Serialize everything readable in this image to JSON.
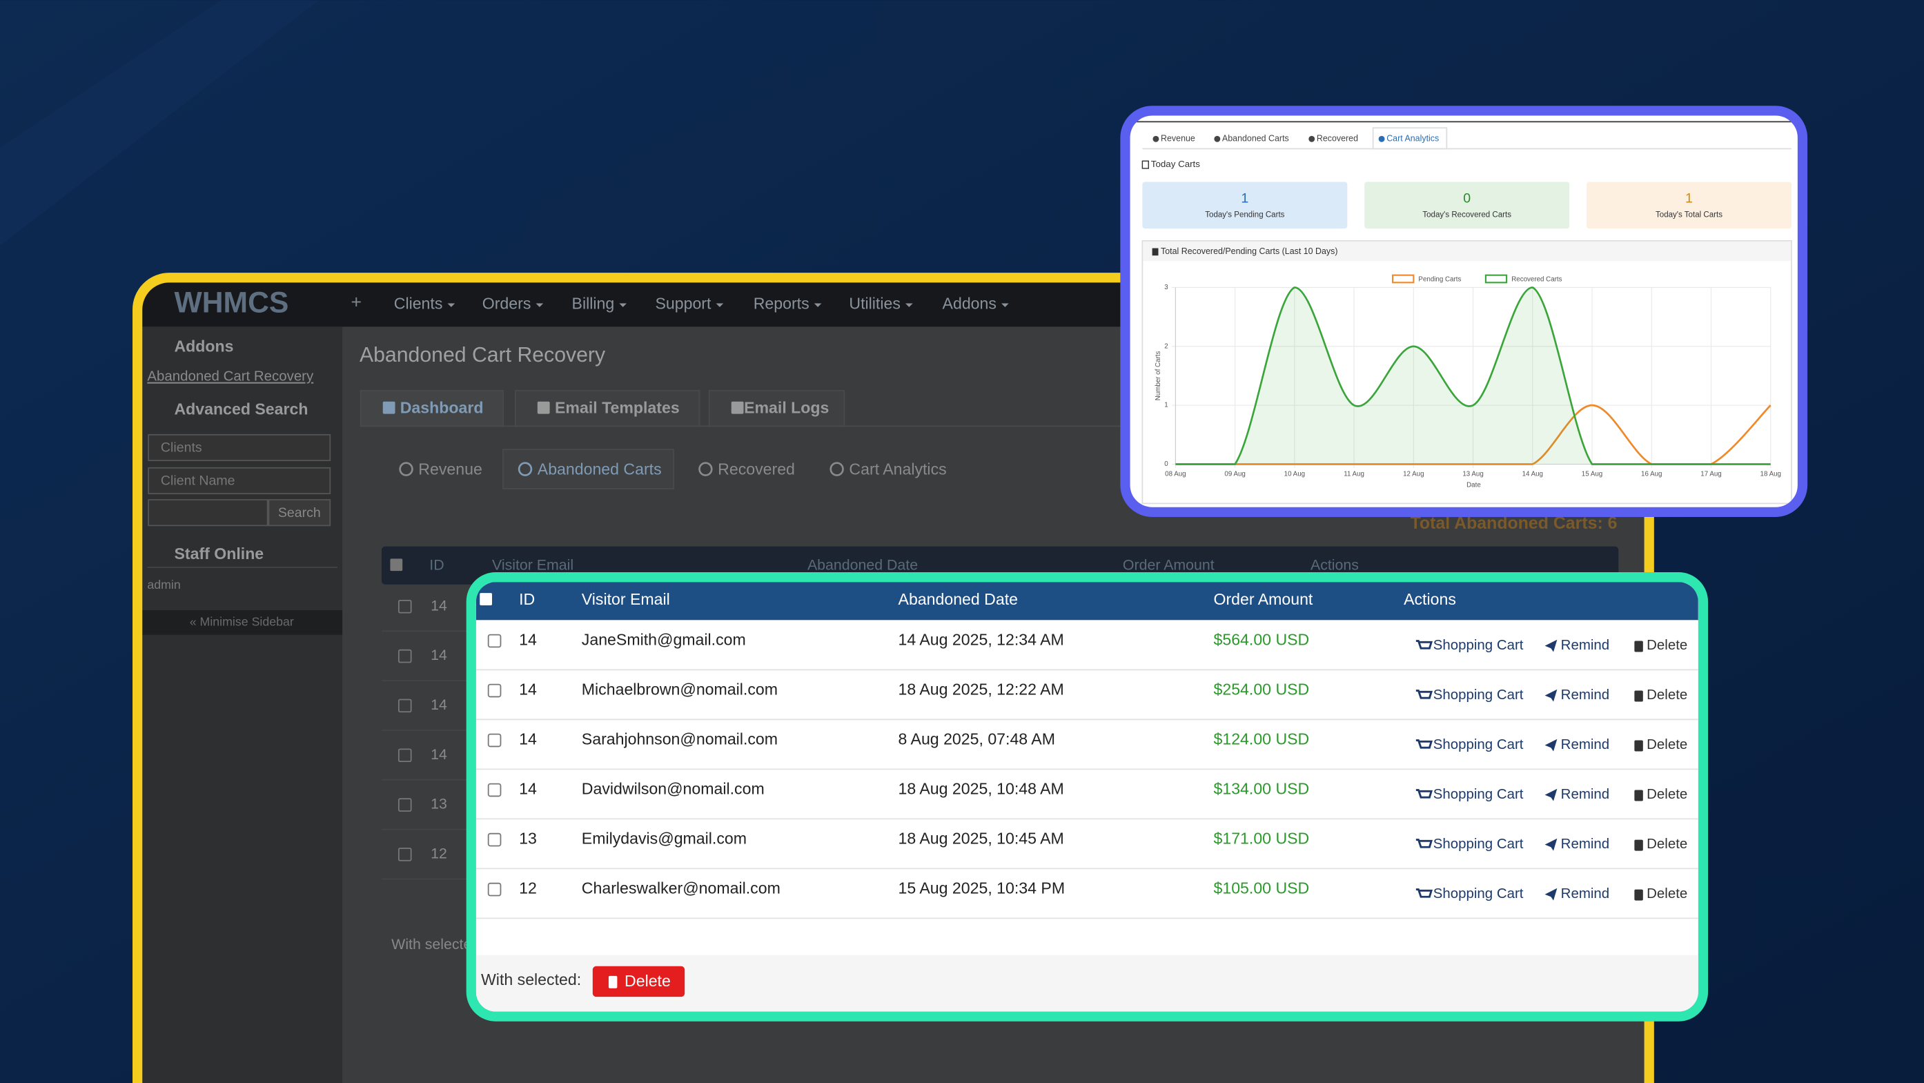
{
  "nav": {
    "logo": "WHMCS",
    "plus": "+",
    "menu": [
      "Clients",
      "Orders",
      "Billing",
      "Support",
      "Reports",
      "Utilities",
      "Addons"
    ]
  },
  "sidebar": {
    "addons_title": "Addons",
    "addons_link": "Abandoned Cart Recovery",
    "search_title": "Advanced Search",
    "select_type": "Clients",
    "select_field": "Client Name",
    "search_button": "Search",
    "staff_title": "Staff Online",
    "staff": "admin",
    "minimise": "« Minimise Sidebar"
  },
  "main": {
    "title": "Abandoned Cart Recovery",
    "tabs": [
      "Dashboard",
      "Email Templates",
      "Email Logs"
    ],
    "subtabs": [
      "Revenue",
      "Abandoned Carts",
      "Recovered",
      "Cart Analytics"
    ],
    "total": "Total Abandoned Carts: 6",
    "with_selected": "With selected:"
  },
  "table": {
    "headers": [
      "ID",
      "Visitor Email",
      "Abandoned Date",
      "Order Amount",
      "Actions"
    ],
    "rows": [
      [
        "14",
        "JaneSmith@gmail.com",
        "14 Aug 2025, 12:34 AM",
        "$564.00 USD"
      ],
      [
        "14",
        "Michaelbrown@nomail.com",
        "18 Aug 2025, 12:22 AM",
        "$254.00 USD"
      ],
      [
        "14",
        "Sarahjohnson@nomail.com",
        "8 Aug 2025, 07:48 AM",
        "$124.00 USD"
      ],
      [
        "14",
        "Davidwilson@nomail.com",
        "18 Aug 2025, 10:48 AM",
        "$134.00 USD"
      ],
      [
        "13",
        "Emilydavis@gmail.com",
        "18 Aug 2025, 10:45 AM",
        "$171.00 USD"
      ],
      [
        "12",
        "Charleswalker@nomail.com",
        "15 Aug 2025, 10:34 PM",
        "$105.00 USD"
      ]
    ],
    "actions": [
      "Shopping Cart",
      "Remind",
      "Delete"
    ],
    "with_selected": "With selected:",
    "delete_button": "Delete"
  },
  "analytics": {
    "tabs": [
      "Revenue",
      "Abandoned Carts",
      "Recovered",
      "Cart Analytics"
    ],
    "today_title": "Today Carts",
    "stats": [
      {
        "value": 1,
        "label": "Today's Pending Carts"
      },
      {
        "value": 0,
        "label": "Today's Recovered Carts"
      },
      {
        "value": 1,
        "label": "Today's Total Carts"
      }
    ]
  },
  "chart_data": {
    "type": "line",
    "title": "Total Recovered/Pending Carts (Last 10 Days)",
    "x_label": "Date",
    "y_label": "Number of Carts",
    "categories": [
      "08 Aug",
      "09 Aug",
      "10 Aug",
      "11 Aug",
      "12 Aug",
      "13 Aug",
      "14 Aug",
      "15 Aug",
      "16 Aug",
      "17 Aug",
      "18 Aug"
    ],
    "series": [
      {
        "name": "Pending Carts",
        "color": "#f0892a",
        "values": [
          0,
          0,
          0,
          0,
          0,
          0,
          0,
          1,
          0,
          0,
          1
        ]
      },
      {
        "name": "Recovered Carts",
        "color": "#3aa53a",
        "values": [
          0,
          0,
          3,
          1,
          2,
          1,
          3,
          0,
          0,
          0,
          0
        ]
      }
    ],
    "ylim": [
      0,
      3
    ],
    "yticks": [
      0,
      1,
      2,
      3
    ],
    "grid": true,
    "legend": "top"
  }
}
